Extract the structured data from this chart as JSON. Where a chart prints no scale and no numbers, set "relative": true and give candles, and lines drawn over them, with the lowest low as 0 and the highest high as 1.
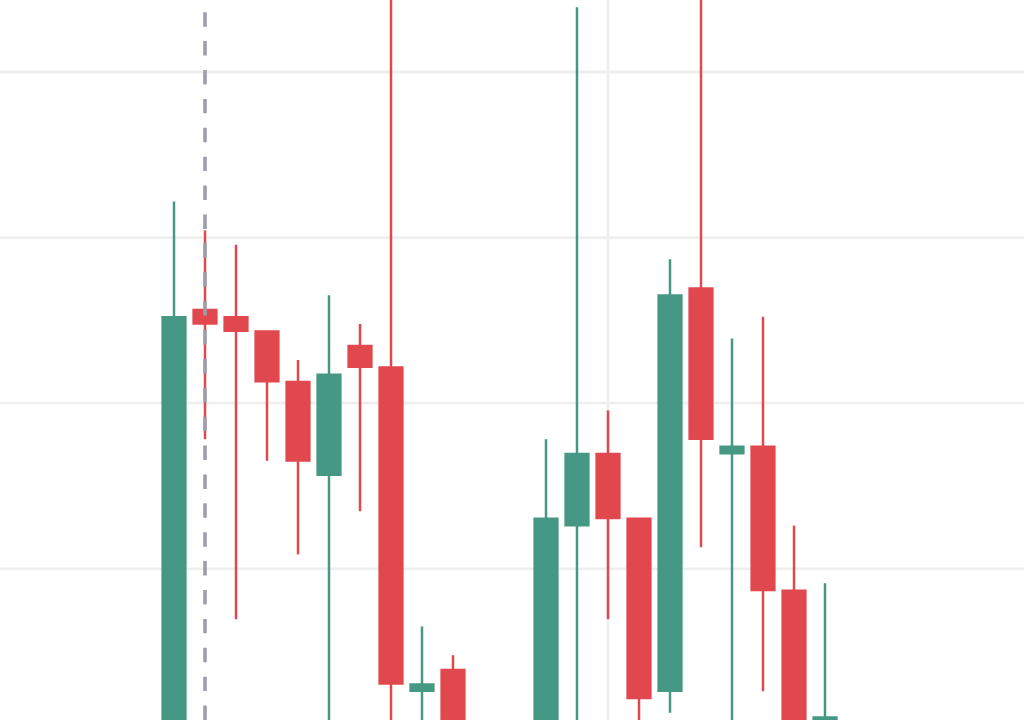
{
  "chart_data": {
    "type": "candlestick",
    "relative": true,
    "categories": [
      null,
      null,
      null,
      null,
      null,
      null,
      null,
      null,
      null,
      null,
      null,
      null,
      null,
      null,
      null,
      null,
      null,
      null,
      null,
      null,
      null,
      null
    ],
    "ohlc": [
      [
        0,
        0.72,
        0,
        0.56
      ],
      [
        0.57,
        0.68,
        0.39,
        0.55
      ],
      [
        0.56,
        0.66,
        0.14,
        0.54
      ],
      [
        0.54,
        0.54,
        0.36,
        0.47
      ],
      [
        0.47,
        0.5,
        0.23,
        0.36
      ],
      [
        0.34,
        0.59,
        0,
        0.48
      ],
      [
        0.52,
        0.55,
        0.29,
        0.49
      ],
      [
        0.49,
        1,
        0,
        0.05
      ],
      [
        0.04,
        0.13,
        0,
        0.05
      ],
      [
        0.07,
        0.09,
        0,
        0
      ],
      null,
      null,
      [
        0,
        0.39,
        0,
        0.28
      ],
      [
        0.27,
        0.99,
        0,
        0.37
      ],
      [
        0.37,
        0.43,
        0.14,
        0.28
      ],
      [
        0.28,
        0.28,
        0,
        0.03
      ],
      [
        0.04,
        0.64,
        0.01,
        0.59
      ],
      [
        0.6,
        1,
        0.24,
        0.39
      ],
      [
        0.37,
        0.53,
        0,
        0.38
      ],
      [
        0.38,
        0.56,
        0.04,
        0.18
      ],
      [
        0.18,
        0.27,
        0,
        0
      ],
      [
        0,
        0.19,
        0,
        0
      ]
    ],
    "grid": true,
    "colors": [
      "#459883",
      "#e0484e",
      "#e0484e",
      "#e0484e",
      "#e0484e",
      "#459883",
      "#e0484e",
      "#e0484e",
      "#459883",
      "#e0484e",
      null,
      null,
      "#459883",
      "#459883",
      "#e0484e",
      "#e0484e",
      "#459883",
      "#e0484e",
      "#459883",
      "#e0484e",
      "#e0484e",
      "#459883"
    ]
  }
}
